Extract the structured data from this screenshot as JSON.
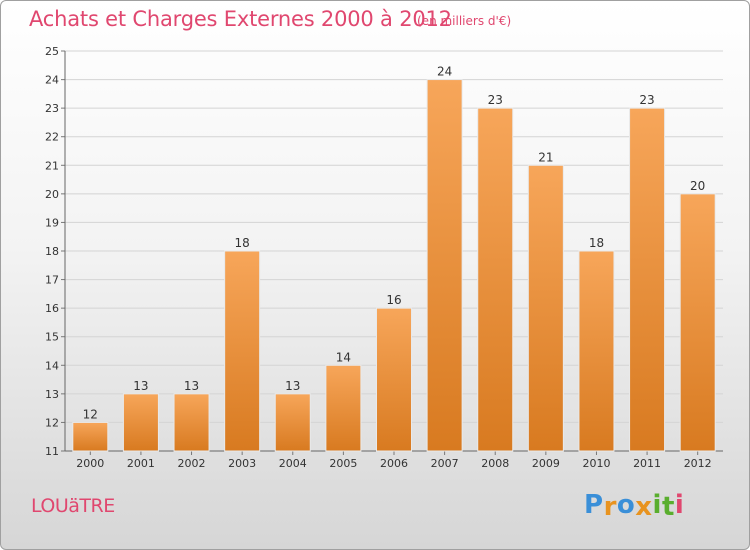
{
  "title": "Achats et Charges Externes 2000 à 2012",
  "subtitle": "(en milliers d'€)",
  "commune": "LOUäTRE",
  "logo": {
    "letters": [
      "P",
      "r",
      "o",
      "x",
      "i",
      "t",
      "i"
    ],
    "colors": [
      "#3a8fd8",
      "#e8931f",
      "#3a8fd8",
      "#e8931f",
      "#5aae2e",
      "#5aae2e",
      "#e0476f"
    ]
  },
  "colors": {
    "accent": "#e0476f",
    "bar_top": "#f7a65a",
    "bar_bottom": "#d87a20"
  },
  "chart_data": {
    "type": "bar",
    "title": "Achats et Charges Externes 2000 à 2012",
    "subtitle": "(en milliers d'€)",
    "categories": [
      "2000",
      "2001",
      "2002",
      "2003",
      "2004",
      "2005",
      "2006",
      "2007",
      "2008",
      "2009",
      "2010",
      "2011",
      "2012"
    ],
    "values": [
      12,
      13,
      13,
      18,
      13,
      14,
      16,
      24,
      23,
      21,
      18,
      23,
      20
    ],
    "ylim": [
      11,
      25
    ],
    "yticks": [
      11,
      12,
      13,
      14,
      15,
      16,
      17,
      18,
      19,
      20,
      21,
      22,
      23,
      24,
      25
    ],
    "grid": true,
    "legend": "none"
  }
}
